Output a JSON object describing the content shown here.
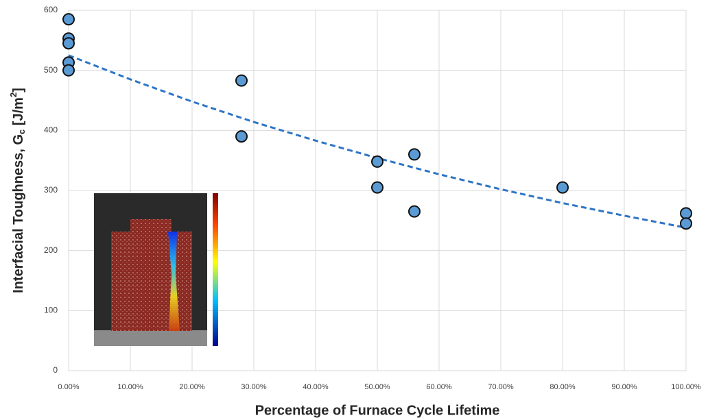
{
  "chart_data": {
    "type": "scatter",
    "xlabel": "Percentage of Furnace Cycle Lifetime",
    "ylabel": [
      "Interfacial Toughness, G",
      "c",
      " [J/m",
      "2",
      "]"
    ],
    "x": [
      0,
      0,
      0,
      0,
      0,
      28,
      28,
      50,
      50,
      56,
      56,
      80,
      100,
      100
    ],
    "values": [
      585,
      553,
      545,
      513,
      500,
      483,
      390,
      348,
      305,
      360,
      265,
      305,
      262,
      245
    ],
    "color": "#5b9bd5",
    "trendline": {
      "x": [
        0,
        10,
        20,
        30,
        40,
        50,
        60,
        70,
        80,
        90,
        100
      ],
      "values": [
        525,
        485,
        448,
        414,
        383,
        354,
        327,
        302,
        279,
        258,
        238
      ],
      "color": "#2e75c5"
    },
    "xlim": [
      0,
      100
    ],
    "xticks": [
      {
        "value": 0,
        "label": "0.00%"
      },
      {
        "value": 10,
        "label": "10.00%"
      },
      {
        "value": 20,
        "label": "20.00%"
      },
      {
        "value": 30,
        "label": "30.00%"
      },
      {
        "value": 40,
        "label": "40.00%"
      },
      {
        "value": 50,
        "label": "50.00%"
      },
      {
        "value": 60,
        "label": "60.00%"
      },
      {
        "value": 70,
        "label": "70.00%"
      },
      {
        "value": 80,
        "label": "80.00%"
      },
      {
        "value": 90,
        "label": "90.00%"
      },
      {
        "value": 100,
        "label": "100.00%"
      }
    ],
    "ylim": [
      0,
      600
    ],
    "yticks": [
      0,
      100,
      200,
      300,
      400,
      500,
      600
    ],
    "grid": true
  }
}
